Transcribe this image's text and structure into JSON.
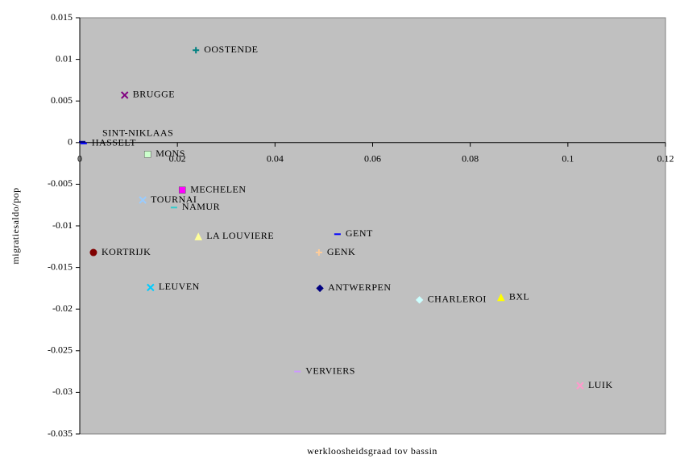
{
  "chart_data": {
    "type": "scatter",
    "xlabel": "werkloosheidsgraad tov bassin",
    "ylabel": "migratiesaldo/pop",
    "xlim": [
      0,
      0.12
    ],
    "xticks": [
      0,
      0.02,
      0.04,
      0.06,
      0.08,
      0.1,
      0.12
    ],
    "ylim": [
      -0.035,
      0.015
    ],
    "yticks": [
      0.015,
      0.01,
      0.005,
      0,
      -0.005,
      -0.01,
      -0.015,
      -0.02,
      -0.025,
      -0.03,
      -0.035
    ],
    "points": [
      {
        "name": "OOSTENDE",
        "x": 0.0238,
        "y": 0.0111,
        "color": "#008080",
        "marker": "plus"
      },
      {
        "name": "BRUGGE",
        "x": 0.0092,
        "y": 0.0057,
        "color": "#800080",
        "marker": "x"
      },
      {
        "name": "SINT-NIKLAAS",
        "x": 0.0005,
        "y": 0.0001,
        "color": "#000080",
        "marker": "dash"
      },
      {
        "name": "HASSELT",
        "x": 0.0008,
        "y": -0.0001,
        "color": "#0000ff",
        "marker": "dash"
      },
      {
        "name": "MONS",
        "x": 0.0139,
        "y": -0.0014,
        "color": "#ccffcc",
        "marker": "square"
      },
      {
        "name": "MECHELEN",
        "x": 0.021,
        "y": -0.0057,
        "color": "#ff00ff",
        "marker": "square"
      },
      {
        "name": "TOURNAI",
        "x": 0.0129,
        "y": -0.0069,
        "color": "#99ccff",
        "marker": "x"
      },
      {
        "name": "NAMUR",
        "x": 0.0193,
        "y": -0.0078,
        "color": "#33cccc",
        "marker": "dash"
      },
      {
        "name": "LA LOUVIERE",
        "x": 0.0243,
        "y": -0.0113,
        "color": "#ffff99",
        "marker": "triangle"
      },
      {
        "name": "GENT",
        "x": 0.0528,
        "y": -0.011,
        "color": "#0000ff",
        "marker": "dash"
      },
      {
        "name": "KORTRIJK",
        "x": 0.0028,
        "y": -0.0132,
        "color": "#800000",
        "marker": "circle"
      },
      {
        "name": "GENK",
        "x": 0.049,
        "y": -0.0132,
        "color": "#ffcc99",
        "marker": "plus"
      },
      {
        "name": "LEUVEN",
        "x": 0.0145,
        "y": -0.0174,
        "color": "#00ccff",
        "marker": "x"
      },
      {
        "name": "ANTWERPEN",
        "x": 0.0492,
        "y": -0.0175,
        "color": "#000080",
        "marker": "diamond"
      },
      {
        "name": "CHARLEROI",
        "x": 0.0696,
        "y": -0.0189,
        "color": "#ccffff",
        "marker": "diamond"
      },
      {
        "name": "BXL",
        "x": 0.0863,
        "y": -0.0186,
        "color": "#ffff00",
        "marker": "triangle"
      },
      {
        "name": "VERVIERS",
        "x": 0.0446,
        "y": -0.0275,
        "color": "#cc99ff",
        "marker": "dash"
      },
      {
        "name": "LUIK",
        "x": 0.1025,
        "y": -0.0292,
        "color": "#ff99cc",
        "marker": "x"
      }
    ]
  }
}
